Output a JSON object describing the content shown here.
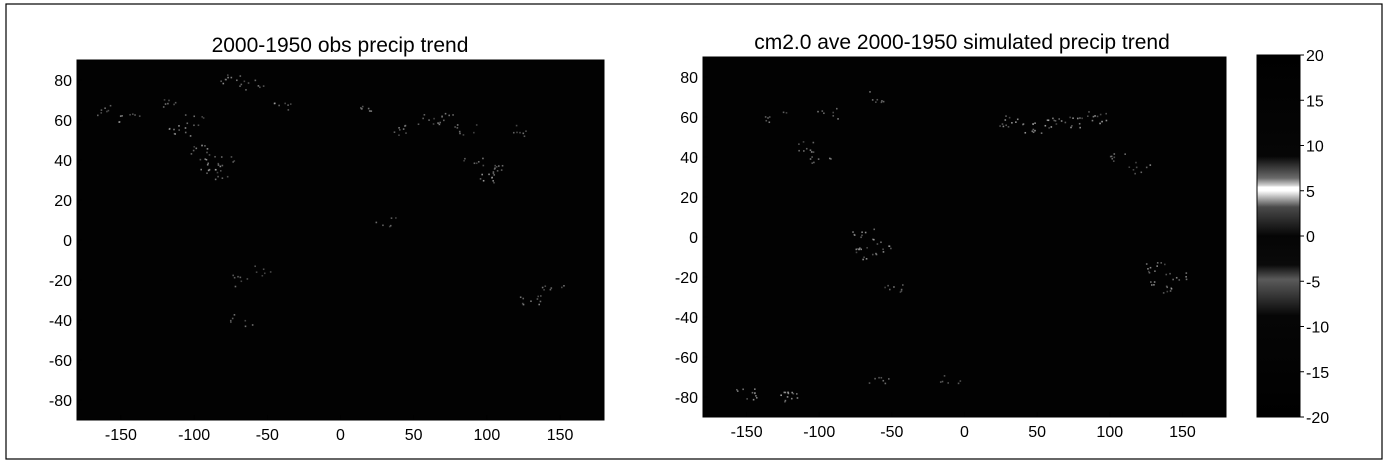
{
  "chart_data": [
    {
      "type": "heatmap",
      "title": "2000-1950 obs precip trend",
      "xlabel": "",
      "ylabel": "",
      "xlim": [
        -180,
        180
      ],
      "ylim": [
        -90,
        90
      ],
      "xticks": [
        -150,
        -100,
        -50,
        0,
        50,
        100,
        150
      ],
      "yticks": [
        -80,
        -60,
        -40,
        -20,
        0,
        20,
        40,
        60,
        80
      ],
      "grid": false,
      "background_color": "#020202",
      "speckle_color": "#b8b8b8",
      "speckles": [
        {
          "lon": -160,
          "lat": 65,
          "weight": 0.5
        },
        {
          "lon": -145,
          "lat": 62,
          "weight": 0.6
        },
        {
          "lon": -120,
          "lat": 68,
          "weight": 0.5
        },
        {
          "lon": -110,
          "lat": 55,
          "weight": 0.7
        },
        {
          "lon": -100,
          "lat": 60,
          "weight": 0.5
        },
        {
          "lon": -95,
          "lat": 45,
          "weight": 0.7
        },
        {
          "lon": -90,
          "lat": 38,
          "weight": 0.8
        },
        {
          "lon": -85,
          "lat": 33,
          "weight": 0.6
        },
        {
          "lon": -80,
          "lat": 40,
          "weight": 0.5
        },
        {
          "lon": -75,
          "lat": 80,
          "weight": 0.8
        },
        {
          "lon": -60,
          "lat": 78,
          "weight": 0.5
        },
        {
          "lon": -40,
          "lat": 68,
          "weight": 0.5
        },
        {
          "lon": -70,
          "lat": -20,
          "weight": 0.5
        },
        {
          "lon": -68,
          "lat": -40,
          "weight": 0.5
        },
        {
          "lon": -55,
          "lat": -15,
          "weight": 0.4
        },
        {
          "lon": 20,
          "lat": 65,
          "weight": 0.5
        },
        {
          "lon": 40,
          "lat": 55,
          "weight": 0.6
        },
        {
          "lon": 60,
          "lat": 60,
          "weight": 0.6
        },
        {
          "lon": 75,
          "lat": 62,
          "weight": 0.5
        },
        {
          "lon": 85,
          "lat": 55,
          "weight": 0.6
        },
        {
          "lon": 90,
          "lat": 40,
          "weight": 0.5
        },
        {
          "lon": 100,
          "lat": 32,
          "weight": 0.8
        },
        {
          "lon": 110,
          "lat": 35,
          "weight": 0.6
        },
        {
          "lon": 120,
          "lat": 55,
          "weight": 0.5
        },
        {
          "lon": 30,
          "lat": 10,
          "weight": 0.4
        },
        {
          "lon": 130,
          "lat": -30,
          "weight": 0.7
        },
        {
          "lon": 145,
          "lat": -25,
          "weight": 0.5
        }
      ]
    },
    {
      "type": "heatmap",
      "title": "cm2.0 ave 2000-1950 simulated precip trend",
      "xlabel": "",
      "ylabel": "",
      "xlim": [
        -180,
        180
      ],
      "ylim": [
        -90,
        90
      ],
      "xticks": [
        -150,
        -100,
        -50,
        0,
        50,
        100,
        150
      ],
      "yticks": [
        -80,
        -60,
        -40,
        -20,
        0,
        20,
        40,
        60,
        80
      ],
      "grid": false,
      "background_color": "#020202",
      "speckle_color": "#bdbdbd",
      "speckles": [
        {
          "lon": -130,
          "lat": 60,
          "weight": 0.5
        },
        {
          "lon": -110,
          "lat": 45,
          "weight": 0.6
        },
        {
          "lon": -100,
          "lat": 40,
          "weight": 0.6
        },
        {
          "lon": -95,
          "lat": 62,
          "weight": 0.5
        },
        {
          "lon": -60,
          "lat": 70,
          "weight": 0.5
        },
        {
          "lon": -70,
          "lat": 2,
          "weight": 0.7
        },
        {
          "lon": -68,
          "lat": -8,
          "weight": 0.9
        },
        {
          "lon": -55,
          "lat": -5,
          "weight": 0.6
        },
        {
          "lon": -50,
          "lat": -25,
          "weight": 0.6
        },
        {
          "lon": -60,
          "lat": -70,
          "weight": 0.5
        },
        {
          "lon": -150,
          "lat": -78,
          "weight": 0.8
        },
        {
          "lon": -120,
          "lat": -80,
          "weight": 0.9
        },
        {
          "lon": -10,
          "lat": -70,
          "weight": 0.4
        },
        {
          "lon": 30,
          "lat": 58,
          "weight": 0.8
        },
        {
          "lon": 45,
          "lat": 55,
          "weight": 0.8
        },
        {
          "lon": 60,
          "lat": 57,
          "weight": 0.8
        },
        {
          "lon": 75,
          "lat": 58,
          "weight": 0.7
        },
        {
          "lon": 90,
          "lat": 60,
          "weight": 0.8
        },
        {
          "lon": 105,
          "lat": 40,
          "weight": 0.5
        },
        {
          "lon": 120,
          "lat": 35,
          "weight": 0.6
        },
        {
          "lon": 130,
          "lat": -15,
          "weight": 0.7
        },
        {
          "lon": 135,
          "lat": -25,
          "weight": 0.8
        },
        {
          "lon": 145,
          "lat": -20,
          "weight": 0.6
        }
      ]
    }
  ],
  "colorbar": {
    "ticks": [
      20,
      15,
      10,
      5,
      0,
      -5,
      -10,
      -15,
      -20
    ],
    "range": [
      -20,
      20
    ],
    "highlight_value": 6
  }
}
